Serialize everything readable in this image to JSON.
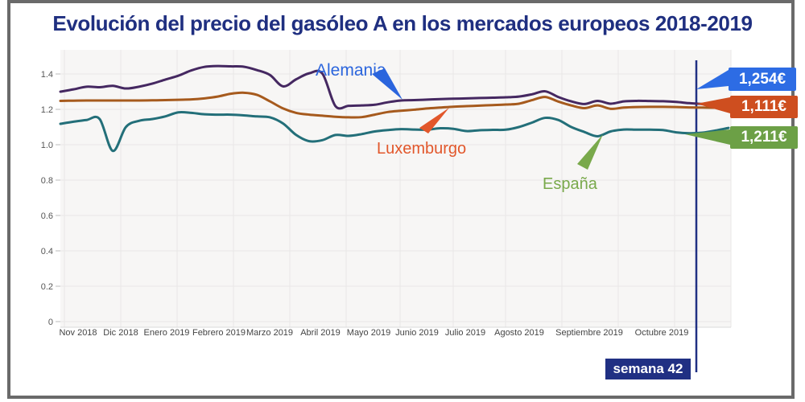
{
  "title": "Evolución del precio del gasóleo A en los mercados europeos 2018-2019",
  "title_color": "#1f2f80",
  "window": {
    "border_color": "#6a6a6a",
    "background": "#ffffff"
  },
  "chart_data": {
    "type": "line",
    "title": "Evolución del precio del gasóleo A en los mercados europeos 2018-2019",
    "xlabel": "",
    "ylabel": "",
    "ylim": [
      0,
      1.5
    ],
    "grid": true,
    "plot_bg": "#f7f6f5",
    "grid_color": "#e9e7e6",
    "axis_text_color": "#555555",
    "x_tick_labels": [
      "Nov 2018",
      "Dic 2018",
      "Enero 2019",
      "Febrero 2019",
      "Marzo 2019",
      "Abril 2019",
      "Mayo 2019",
      "Junio 2019",
      "Julio 2019",
      "Agosto 2019",
      "Septiembre 2019",
      "Octubre 2019"
    ],
    "y_tick_labels": [
      "0",
      "0.2",
      "0.4",
      "0.6",
      "0.8",
      "1.0",
      "1.2",
      "1.4"
    ],
    "series": [
      {
        "name": "Alemania",
        "color": "#452861",
        "label_color": "#2b65dd",
        "values": [
          1.3,
          1.313,
          1.328,
          1.325,
          1.333,
          1.318,
          1.328,
          1.345,
          1.368,
          1.39,
          1.42,
          1.44,
          1.445,
          1.443,
          1.441,
          1.422,
          1.394,
          1.33,
          1.37,
          1.404,
          1.402,
          1.218,
          1.22,
          1.222,
          1.226,
          1.24,
          1.25,
          1.252,
          1.255,
          1.258,
          1.26,
          1.262,
          1.264,
          1.266,
          1.268,
          1.272,
          1.285,
          1.302,
          1.27,
          1.245,
          1.23,
          1.248,
          1.232,
          1.245,
          1.248,
          1.247,
          1.246,
          1.242,
          1.235,
          1.23,
          1.226,
          1.222
        ]
      },
      {
        "name": "Luxemburgo",
        "color": "#a65a1d",
        "label_color": "#e2572b",
        "values": [
          1.248,
          1.249,
          1.25,
          1.25,
          1.25,
          1.25,
          1.25,
          1.251,
          1.252,
          1.254,
          1.256,
          1.262,
          1.272,
          1.288,
          1.294,
          1.282,
          1.245,
          1.205,
          1.18,
          1.17,
          1.164,
          1.158,
          1.155,
          1.156,
          1.17,
          1.185,
          1.192,
          1.198,
          1.205,
          1.21,
          1.215,
          1.218,
          1.221,
          1.224,
          1.227,
          1.232,
          1.252,
          1.27,
          1.244,
          1.222,
          1.207,
          1.222,
          1.203,
          1.21,
          1.213,
          1.214,
          1.214,
          1.213,
          1.211,
          1.21,
          1.209,
          1.207
        ]
      },
      {
        "name": "España",
        "color": "#236f79",
        "label_color": "#79a94b",
        "values": [
          1.118,
          1.13,
          1.14,
          1.145,
          0.965,
          1.1,
          1.135,
          1.145,
          1.16,
          1.183,
          1.18,
          1.172,
          1.17,
          1.17,
          1.166,
          1.16,
          1.155,
          1.12,
          1.055,
          1.02,
          1.026,
          1.055,
          1.05,
          1.06,
          1.075,
          1.083,
          1.088,
          1.086,
          1.085,
          1.093,
          1.09,
          1.077,
          1.082,
          1.084,
          1.085,
          1.1,
          1.125,
          1.152,
          1.14,
          1.1,
          1.072,
          1.048,
          1.075,
          1.086,
          1.085,
          1.085,
          1.083,
          1.07,
          1.065,
          1.068,
          1.08,
          1.095
        ]
      }
    ],
    "value_badges": [
      {
        "series": "Alemania",
        "value": "1,254€",
        "color": "#2d6ce4"
      },
      {
        "series": "Luxemburgo",
        "value": "1,111€",
        "color": "#ce4e1f"
      },
      {
        "series": "España",
        "value": "1,211€",
        "color": "#6ca046"
      }
    ],
    "annotation_line": {
      "label": "semana 42",
      "color": "#203083"
    }
  }
}
